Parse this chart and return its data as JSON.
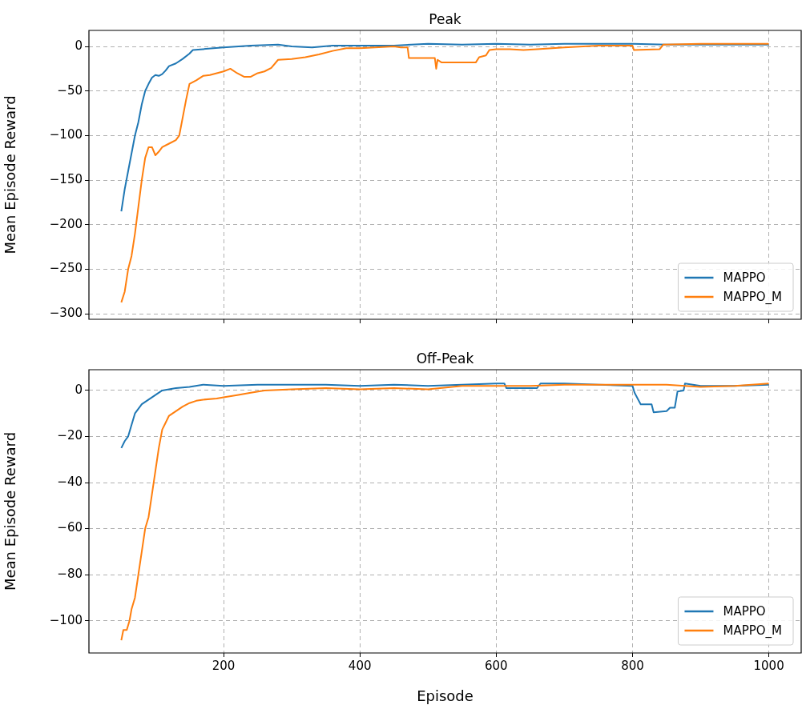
{
  "chart_data": [
    {
      "type": "line",
      "title": "Peak",
      "ylabel": "Mean Episode Reward",
      "xlim": [
        2.5,
        1047.5
      ],
      "ylim": [
        -306,
        18
      ],
      "xticks": [
        200,
        400,
        600,
        800,
        1000
      ],
      "yticks": [
        -300,
        -250,
        -200,
        -150,
        -100,
        -50,
        0
      ],
      "grid": true,
      "legend": "bottom right",
      "tick_labels": "y",
      "series": [
        {
          "name": "MAPPO",
          "color": "#1f77b4",
          "x": [
            50,
            55,
            60,
            65,
            70,
            75,
            80,
            85,
            90,
            95,
            100,
            105,
            110,
            115,
            120,
            130,
            140,
            150,
            155,
            170,
            200,
            240,
            280,
            300,
            330,
            360,
            400,
            450,
            500,
            550,
            600,
            650,
            700,
            750,
            800,
            850,
            900,
            950,
            1000
          ],
          "values": [
            -185,
            -160,
            -140,
            -120,
            -100,
            -85,
            -65,
            -50,
            -42,
            -35,
            -32,
            -33,
            -31,
            -27,
            -22,
            -19,
            -14,
            -8,
            -4,
            -3,
            -1,
            1,
            2,
            0,
            -1,
            1,
            1,
            1,
            3,
            2,
            3,
            2,
            3,
            3,
            3,
            2,
            2,
            2,
            2
          ]
        },
        {
          "name": "MAPPO_M",
          "color": "#ff7f0e",
          "x": [
            50,
            55,
            60,
            65,
            70,
            75,
            80,
            85,
            90,
            95,
            100,
            105,
            110,
            120,
            130,
            135,
            145,
            150,
            160,
            170,
            180,
            190,
            200,
            210,
            220,
            230,
            240,
            250,
            260,
            270,
            280,
            300,
            320,
            340,
            360,
            380,
            400,
            450,
            460,
            470,
            472,
            500,
            510,
            512,
            514,
            520,
            540,
            570,
            575,
            585,
            590,
            600,
            620,
            640,
            660,
            700,
            750,
            790,
            800,
            802,
            840,
            845,
            900,
            950,
            1000
          ],
          "values": [
            -287,
            -275,
            -250,
            -235,
            -210,
            -180,
            -150,
            -125,
            -113,
            -113,
            -122,
            -118,
            -113,
            -109,
            -105,
            -100,
            -60,
            -42,
            -38,
            -33,
            -32,
            -30,
            -28,
            -25,
            -30,
            -34,
            -34,
            -30,
            -28,
            -24,
            -15,
            -14,
            -12,
            -9,
            -5,
            -2,
            -2,
            0,
            -1,
            -1,
            -13,
            -13,
            -13,
            -25,
            -15,
            -18,
            -18,
            -18,
            -12,
            -10,
            -4,
            -3,
            -3,
            -4,
            -3,
            -1,
            1,
            1,
            1,
            -4,
            -3,
            2,
            3,
            3,
            3
          ]
        }
      ]
    },
    {
      "type": "line",
      "title": "Off-Peak",
      "xlabel": "Episode",
      "ylabel": "Mean Episode Reward",
      "xlim": [
        2.5,
        1047.5
      ],
      "ylim": [
        -114,
        9
      ],
      "xticks": [
        200,
        400,
        600,
        800,
        1000
      ],
      "yticks": [
        -100,
        -80,
        -60,
        -40,
        -20,
        0
      ],
      "grid": true,
      "legend": "bottom right",
      "series": [
        {
          "name": "MAPPO",
          "color": "#1f77b4",
          "x": [
            50,
            55,
            60,
            65,
            70,
            75,
            80,
            90,
            100,
            110,
            130,
            150,
            170,
            200,
            250,
            300,
            350,
            400,
            450,
            500,
            550,
            600,
            612,
            615,
            640,
            660,
            665,
            700,
            750,
            800,
            803,
            812,
            828,
            831,
            850,
            855,
            862,
            866,
            875,
            877,
            900,
            950,
            1000
          ],
          "values": [
            -25,
            -22,
            -20,
            -15,
            -10,
            -8,
            -6,
            -4,
            -2,
            0,
            1,
            1.5,
            2.5,
            2,
            2.5,
            2.5,
            2.5,
            2,
            2.5,
            2,
            2.5,
            3,
            3,
            1,
            1,
            1,
            3,
            3,
            2.5,
            2,
            -1,
            -6,
            -6,
            -9.5,
            -9,
            -7.5,
            -7.5,
            -0.5,
            0,
            3,
            2,
            2,
            2.5
          ]
        },
        {
          "name": "MAPPO_M",
          "color": "#ff7f0e",
          "x": [
            50,
            53,
            58,
            62,
            65,
            70,
            75,
            80,
            85,
            90,
            95,
            100,
            105,
            110,
            115,
            120,
            130,
            140,
            150,
            160,
            170,
            190,
            200,
            220,
            240,
            260,
            300,
            350,
            400,
            450,
            500,
            550,
            600,
            650,
            700,
            750,
            800,
            850,
            900,
            950,
            1000
          ],
          "values": [
            -108.5,
            -104,
            -104,
            -100,
            -95,
            -90,
            -80,
            -70,
            -60,
            -55,
            -45,
            -35,
            -25,
            -17,
            -14,
            -11,
            -9,
            -7,
            -5.5,
            -4.5,
            -4,
            -3.5,
            -3,
            -2,
            -1,
            0,
            0.5,
            1,
            0.5,
            1,
            0.5,
            2,
            2,
            2,
            2.5,
            2.5,
            2.5,
            2.5,
            1.5,
            2,
            3
          ]
        }
      ]
    }
  ]
}
